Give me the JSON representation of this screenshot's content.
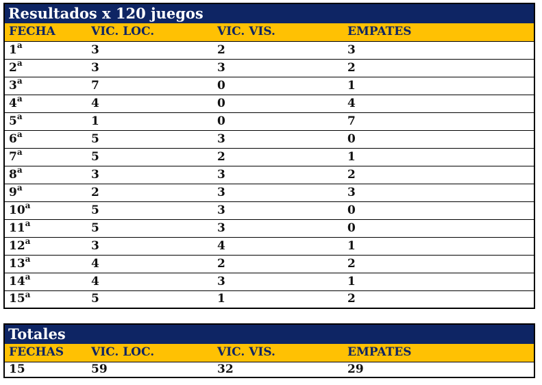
{
  "colors": {
    "navy": "#0E2564",
    "gold": "#FFC103",
    "row_text": "#111111",
    "title_text": "#FFFFFF"
  },
  "chart_data": [
    {
      "type": "table",
      "title": "Resultados x 120 juegos",
      "columns": [
        "FECHA",
        "VIC. LOC.",
        "VIC. VIS.",
        "EMPATES"
      ],
      "ordinal_suffix": "a",
      "rows": [
        {
          "fecha": 1,
          "vic_loc": 3,
          "vic_vis": 2,
          "empates": 3
        },
        {
          "fecha": 2,
          "vic_loc": 3,
          "vic_vis": 3,
          "empates": 2
        },
        {
          "fecha": 3,
          "vic_loc": 7,
          "vic_vis": 0,
          "empates": 1
        },
        {
          "fecha": 4,
          "vic_loc": 4,
          "vic_vis": 0,
          "empates": 4
        },
        {
          "fecha": 5,
          "vic_loc": 1,
          "vic_vis": 0,
          "empates": 7
        },
        {
          "fecha": 6,
          "vic_loc": 5,
          "vic_vis": 3,
          "empates": 0
        },
        {
          "fecha": 7,
          "vic_loc": 5,
          "vic_vis": 2,
          "empates": 1
        },
        {
          "fecha": 8,
          "vic_loc": 3,
          "vic_vis": 3,
          "empates": 2
        },
        {
          "fecha": 9,
          "vic_loc": 2,
          "vic_vis": 3,
          "empates": 3
        },
        {
          "fecha": 10,
          "vic_loc": 5,
          "vic_vis": 3,
          "empates": 0
        },
        {
          "fecha": 11,
          "vic_loc": 5,
          "vic_vis": 3,
          "empates": 0
        },
        {
          "fecha": 12,
          "vic_loc": 3,
          "vic_vis": 4,
          "empates": 1
        },
        {
          "fecha": 13,
          "vic_loc": 4,
          "vic_vis": 2,
          "empates": 2
        },
        {
          "fecha": 14,
          "vic_loc": 4,
          "vic_vis": 3,
          "empates": 1
        },
        {
          "fecha": 15,
          "vic_loc": 5,
          "vic_vis": 1,
          "empates": 2
        }
      ]
    },
    {
      "type": "table",
      "title": "Totales",
      "columns": [
        "FECHAS",
        "VIC. LOC.",
        "VIC. VIS.",
        "EMPATES"
      ],
      "rows": [
        {
          "fechas": 15,
          "vic_loc": 59,
          "vic_vis": 32,
          "empates": 29
        }
      ]
    }
  ]
}
